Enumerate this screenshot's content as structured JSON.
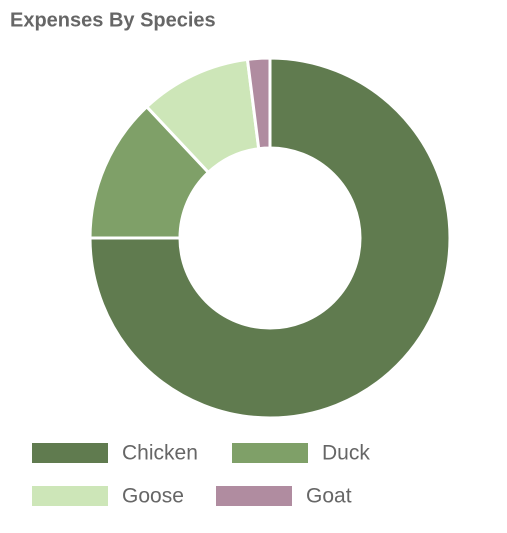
{
  "chart_data": {
    "type": "donut",
    "title": "Expenses By Species",
    "categories": [
      "Chicken",
      "Duck",
      "Goose",
      "Goat"
    ],
    "values": [
      75,
      13,
      10,
      2
    ],
    "colors": [
      "#607b4f",
      "#7fa068",
      "#cde6b8",
      "#b08ca0"
    ]
  }
}
